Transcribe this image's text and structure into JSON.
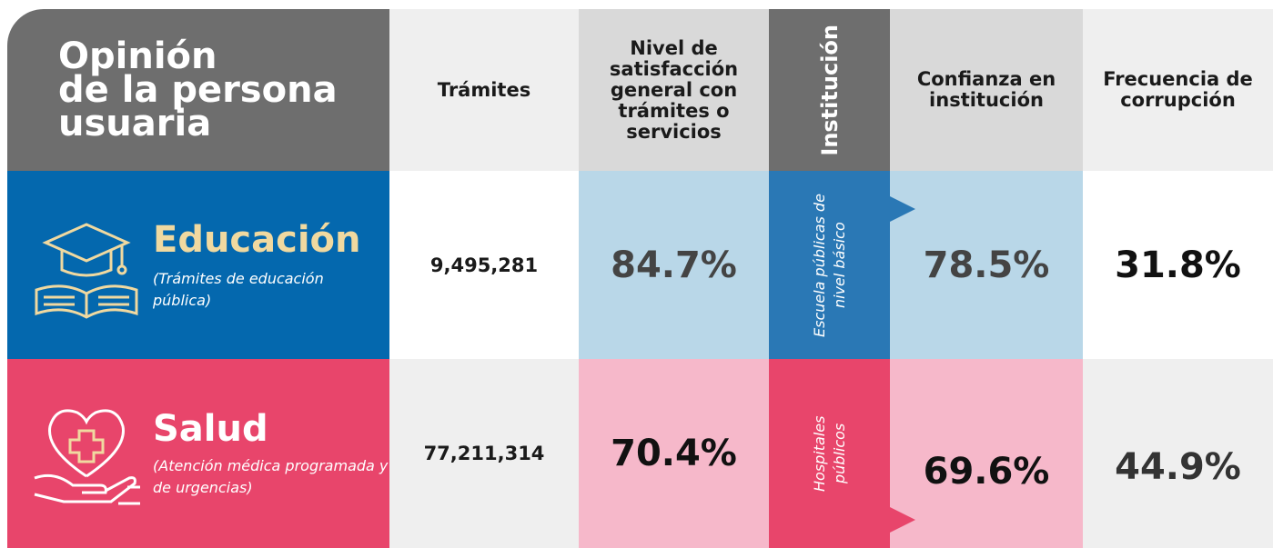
{
  "header": {
    "title_lines": [
      "Opinión",
      "de la persona",
      "usuaria"
    ],
    "columns": [
      "Trámites",
      "Nivel de satisfacción general con trámites o servicios",
      "Institución",
      "Confianza en institución",
      "Frecuencia de corrupción"
    ]
  },
  "rows": [
    {
      "sector": "Educación",
      "description": "(Trámites de educación pública)",
      "tramites": "9,495,281",
      "satisfaccion": "84.7%",
      "institucion": "Escuela públicas de nivel básico",
      "confianza": "78.5%",
      "corrupcion": "31.8%"
    },
    {
      "sector": "Salud",
      "description": "(Atención médica programada y de urgencias)",
      "tramites": "77,211,314",
      "satisfaccion": "70.4%",
      "institucion": "Hospitales públicos",
      "confianza": "69.6%",
      "corrupcion": "44.9%"
    }
  ]
}
